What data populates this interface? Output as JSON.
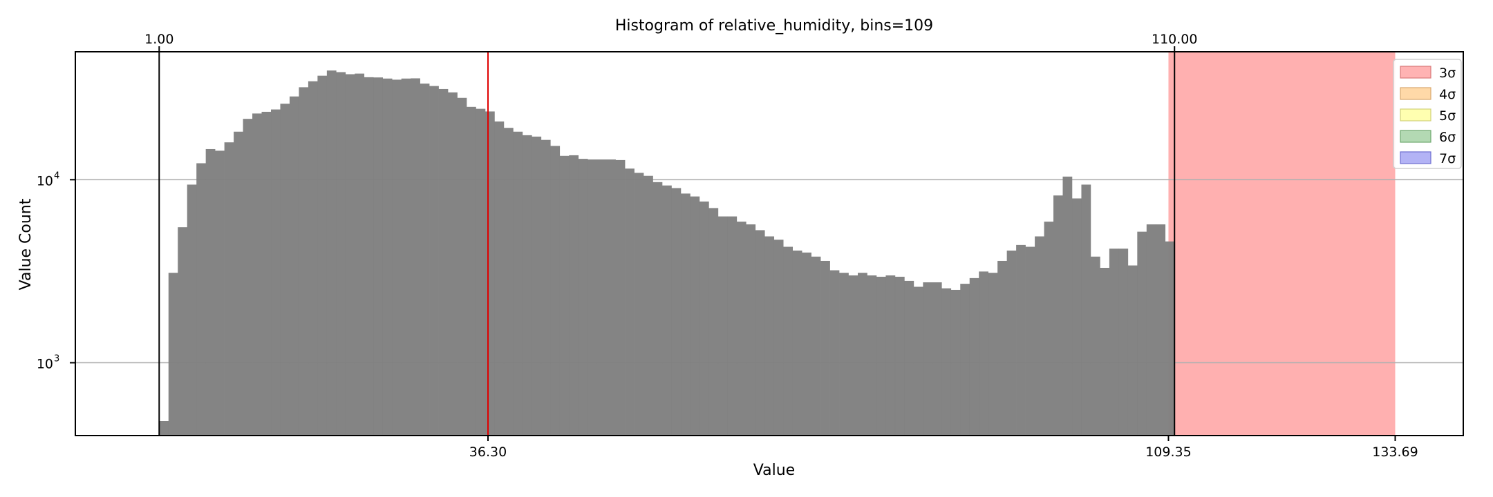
{
  "chart_data": {
    "type": "bar",
    "title": "Histogram of relative_humidity, bins=109",
    "xlabel": "Value",
    "ylabel": "Value Count",
    "x_range": [
      -8.0,
      141.0
    ],
    "y_range_log": [
      400,
      50000
    ],
    "y_scale": "log",
    "grid_y": true,
    "legend_position": "top-right",
    "bin_start": 1.0,
    "bin_end": 110.0,
    "bin_count": 109,
    "counts": [
      480,
      3100,
      5500,
      9400,
      12300,
      14700,
      14400,
      16000,
      18300,
      21500,
      23000,
      23500,
      24200,
      26000,
      28500,
      32000,
      34500,
      37000,
      39500,
      38700,
      37700,
      38000,
      36300,
      36200,
      35700,
      35200,
      35700,
      35800,
      33500,
      32500,
      31300,
      30000,
      28000,
      25000,
      24400,
      23600,
      20800,
      19200,
      18300,
      17500,
      17200,
      16500,
      15300,
      13500,
      13600,
      13000,
      12900,
      12900,
      12900,
      12800,
      11500,
      10900,
      10500,
      9700,
      9300,
      9000,
      8400,
      8100,
      7600,
      7000,
      6300,
      6300,
      5900,
      5700,
      5300,
      4900,
      4700,
      4300,
      4100,
      4000,
      3800,
      3600,
      3200,
      3100,
      3000,
      3100,
      3000,
      2950,
      3000,
      2950,
      2800,
      2600,
      2750,
      2750,
      2550,
      2500,
      2700,
      2900,
      3150,
      3100,
      3600,
      4100,
      4400,
      4300,
      4900,
      5900,
      8200,
      10400,
      7900,
      9400,
      3800,
      3300,
      4200,
      4200,
      3400,
      5200,
      5700,
      5700,
      4600
    ],
    "x_ticks_bottom": [
      {
        "value": 36.3,
        "label": "36.30"
      },
      {
        "value": 109.35,
        "label": "109.35"
      },
      {
        "value": 133.69,
        "label": "133.69"
      }
    ],
    "x_ticks_top": [
      {
        "value": 1.0,
        "label": "1.00"
      },
      {
        "value": 110.0,
        "label": "110.00"
      }
    ],
    "y_ticks": [
      {
        "value": 1000,
        "base": "10",
        "exp": "3"
      },
      {
        "value": 10000,
        "base": "10",
        "exp": "4"
      }
    ],
    "vlines": [
      {
        "value": 1.0,
        "color": "#000000"
      },
      {
        "value": 36.3,
        "color": "#e00000"
      },
      {
        "value": 110.0,
        "color": "#000000"
      }
    ],
    "shaded_band": {
      "from": 109.35,
      "to": 133.69,
      "color": "#ffb0b0"
    },
    "legend": [
      {
        "label": "3σ",
        "fill": "#ffb3b3",
        "stroke": "#d97a7a"
      },
      {
        "label": "4σ",
        "fill": "#ffd9a8",
        "stroke": "#d9a86e"
      },
      {
        "label": "5σ",
        "fill": "#ffffb0",
        "stroke": "#d0d07a"
      },
      {
        "label": "6σ",
        "fill": "#b3d9b3",
        "stroke": "#6ea86e"
      },
      {
        "label": "7σ",
        "fill": "#b3b3f5",
        "stroke": "#6e6ed0"
      }
    ],
    "bar_color": "#808080"
  }
}
